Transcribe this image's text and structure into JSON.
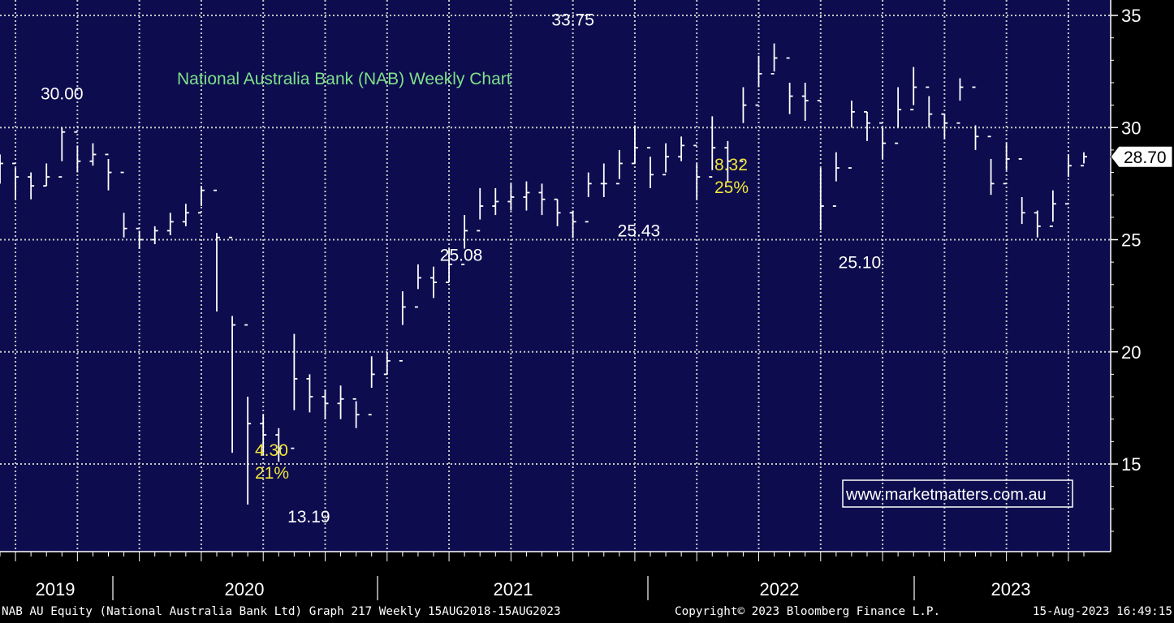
{
  "chart_data": {
    "type": "bar",
    "style": "OHLC",
    "title": "National Australia Bank (NAB) Weekly Chart",
    "watermark": "www.marketmatters.com.au",
    "ylim": [
      11.3,
      35.8
    ],
    "yticks": [
      15,
      20,
      25,
      30,
      35
    ],
    "y_tick_labels": [
      "15",
      "20",
      "25",
      "30",
      "35"
    ],
    "x_year_labels": [
      "2019",
      "2020",
      "2021",
      "2022",
      "2023"
    ],
    "last_price_label": "28.70",
    "price_annotations": [
      {
        "text": "30.00",
        "date": "2018-12",
        "value": 30.0
      },
      {
        "text": "13.19",
        "date": "2020-03",
        "value": 13.19
      },
      {
        "text": "25.08",
        "date": "2021-01",
        "value": 25.08
      },
      {
        "text": "33.75",
        "date": "2021-09",
        "value": 33.75
      },
      {
        "text": "25.43",
        "date": "2022-01",
        "value": 25.43
      },
      {
        "text": "25.10",
        "date": "2023-03",
        "value": 25.1
      }
    ],
    "move_annotations": [
      {
        "change": "4.30",
        "percent": "21%"
      },
      {
        "change": "8.32",
        "percent": "25%"
      }
    ],
    "series": [
      {
        "values": [
          [
            "2018-08",
            28.4,
            27.5,
            28.8
          ],
          [
            "2018-09",
            27.8,
            26.8,
            28.2
          ],
          [
            "2018-10",
            27.4,
            26.8,
            28.0
          ],
          [
            "2018-11",
            27.8,
            27.4,
            28.4
          ],
          [
            "2018-12",
            29.8,
            28.5,
            30.0
          ],
          [
            "2019-01",
            28.5,
            28.0,
            29.2
          ],
          [
            "2019-02",
            28.8,
            28.3,
            29.3
          ],
          [
            "2019-03",
            28.0,
            27.2,
            28.6
          ],
          [
            "2019-04",
            25.5,
            25.1,
            26.2
          ],
          [
            "2019-05",
            25.0,
            24.6,
            25.4
          ],
          [
            "2019-06",
            25.4,
            24.8,
            25.6
          ],
          [
            "2019-07",
            25.8,
            25.2,
            26.2
          ],
          [
            "2019-08",
            26.2,
            25.6,
            26.6
          ],
          [
            "2019-09",
            27.2,
            26.5,
            27.4
          ],
          [
            "2019-10",
            25.1,
            21.8,
            25.3
          ],
          [
            "2019-11",
            21.2,
            15.5,
            21.6
          ],
          [
            "2019-12",
            16.8,
            13.19,
            18.0
          ],
          [
            "2020-01",
            16.3,
            15.4,
            17.2
          ],
          [
            "2020-02",
            15.7,
            15.1,
            16.6
          ],
          [
            "2020-03",
            18.8,
            17.4,
            20.8
          ],
          [
            "2020-04",
            18.0,
            17.3,
            19.0
          ],
          [
            "2020-05",
            17.7,
            17.0,
            18.3
          ],
          [
            "2020-06",
            17.9,
            17.0,
            18.5
          ],
          [
            "2020-07",
            17.2,
            16.6,
            17.8
          ],
          [
            "2020-08",
            19.0,
            18.4,
            19.8
          ],
          [
            "2020-09",
            19.6,
            19.0,
            20.0
          ],
          [
            "2020-10",
            22.0,
            21.2,
            22.7
          ],
          [
            "2020-11",
            23.3,
            22.8,
            23.9
          ],
          [
            "2020-12",
            23.1,
            22.4,
            23.8
          ],
          [
            "2021-01",
            23.9,
            23.1,
            24.6
          ],
          [
            "2021-02",
            25.4,
            24.6,
            26.1
          ],
          [
            "2021-03",
            26.5,
            25.9,
            27.3
          ],
          [
            "2021-04",
            26.7,
            26.1,
            27.3
          ],
          [
            "2021-05",
            26.9,
            26.3,
            27.5
          ],
          [
            "2021-06",
            27.1,
            26.3,
            27.6
          ],
          [
            "2021-07",
            26.8,
            26.1,
            27.5
          ],
          [
            "2021-08",
            26.2,
            25.6,
            26.8
          ],
          [
            "2021-09",
            25.8,
            25.08,
            26.3
          ],
          [
            "2021-10",
            27.5,
            26.9,
            28.0
          ],
          [
            "2021-11",
            27.5,
            26.9,
            28.4
          ],
          [
            "2021-12",
            28.4,
            27.7,
            29.0
          ],
          [
            "2022-01",
            29.1,
            28.4,
            30.1
          ],
          [
            "2022-02",
            27.9,
            27.3,
            28.7
          ],
          [
            "2022-03",
            28.7,
            28.0,
            29.3
          ],
          [
            "2022-04",
            29.2,
            28.5,
            29.6
          ],
          [
            "2022-05",
            27.8,
            26.8,
            28.4
          ],
          [
            "2022-06",
            29.1,
            28.1,
            30.5
          ],
          [
            "2022-07",
            28.5,
            27.6,
            29.4
          ],
          [
            "2022-08",
            31.0,
            30.2,
            31.8
          ],
          [
            "2022-09",
            32.4,
            31.8,
            33.2
          ],
          [
            "2022-10",
            33.1,
            32.5,
            33.75
          ],
          [
            "2022-11",
            31.4,
            30.6,
            32.0
          ],
          [
            "2022-12",
            31.2,
            30.3,
            32.0
          ],
          [
            "2023-01",
            26.5,
            25.43,
            28.2
          ],
          [
            "2023-02",
            28.2,
            27.6,
            28.9
          ],
          [
            "2023-03",
            30.7,
            30.0,
            31.2
          ],
          [
            "2023-04",
            30.2,
            29.4,
            30.7
          ],
          [
            "2023-05",
            29.3,
            28.6,
            30.0
          ],
          [
            "2023-06",
            30.8,
            30.0,
            31.8
          ],
          [
            "2023-07",
            31.8,
            31.0,
            32.7
          ],
          [
            "2023-08",
            30.6,
            30.0,
            31.4
          ],
          [
            "2023-09",
            30.2,
            29.5,
            30.6
          ],
          [
            "2023-10",
            31.8,
            31.2,
            32.2
          ],
          [
            "2023-11",
            29.6,
            29.0,
            30.1
          ],
          [
            "2023-12",
            27.5,
            27.0,
            28.6
          ],
          [
            "2024-01",
            28.6,
            28.1,
            29.3
          ],
          [
            "2024-02",
            26.2,
            25.7,
            26.9
          ],
          [
            "2024-03",
            25.6,
            25.1,
            26.3
          ],
          [
            "2024-04",
            26.6,
            25.8,
            27.2
          ],
          [
            "2024-05",
            28.3,
            27.8,
            28.8
          ],
          [
            "2024-06",
            28.7,
            28.4,
            28.9
          ]
        ]
      }
    ]
  },
  "footer": {
    "info": "NAB AU Equity (National Australia Bank Ltd) Graph 217  Weekly 15AUG2018-15AUG2023",
    "copyright": "Copyright© 2023 Bloomberg Finance L.P.",
    "timestamp": "15-Aug-2023 16:49:15"
  }
}
